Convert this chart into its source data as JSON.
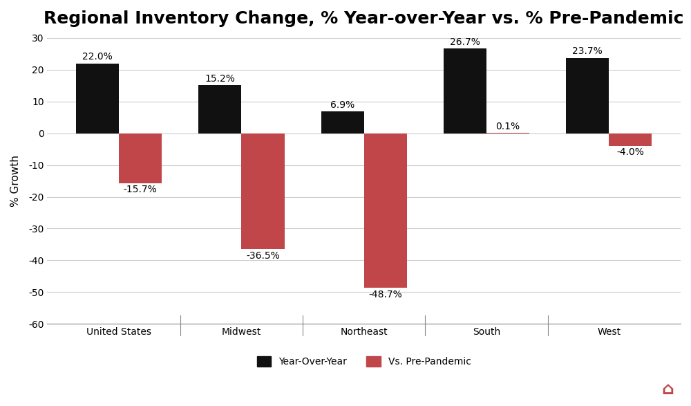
{
  "title": "Regional Inventory Change, % Year-over-Year vs. % Pre-Pandemic",
  "categories": [
    "United States",
    "Midwest",
    "Northeast",
    "South",
    "West"
  ],
  "yoy_values": [
    22.0,
    15.2,
    6.9,
    26.7,
    23.7
  ],
  "prepandemic_values": [
    -15.7,
    -36.5,
    -48.7,
    0.1,
    -4.0
  ],
  "yoy_color": "#111111",
  "prepandemic_color": "#c0464a",
  "ylabel": "% Growth",
  "ylim": [
    -60,
    30
  ],
  "yticks": [
    -60,
    -50,
    -40,
    -30,
    -20,
    -10,
    0,
    10,
    20,
    30
  ],
  "bar_width": 0.35,
  "legend_labels": [
    "Year-Over-Year",
    "Vs. Pre-Pandemic"
  ],
  "background_color": "#ffffff",
  "grid_color": "#cccccc",
  "title_fontsize": 18,
  "axis_fontsize": 11,
  "label_fontsize": 10,
  "tick_fontsize": 10
}
